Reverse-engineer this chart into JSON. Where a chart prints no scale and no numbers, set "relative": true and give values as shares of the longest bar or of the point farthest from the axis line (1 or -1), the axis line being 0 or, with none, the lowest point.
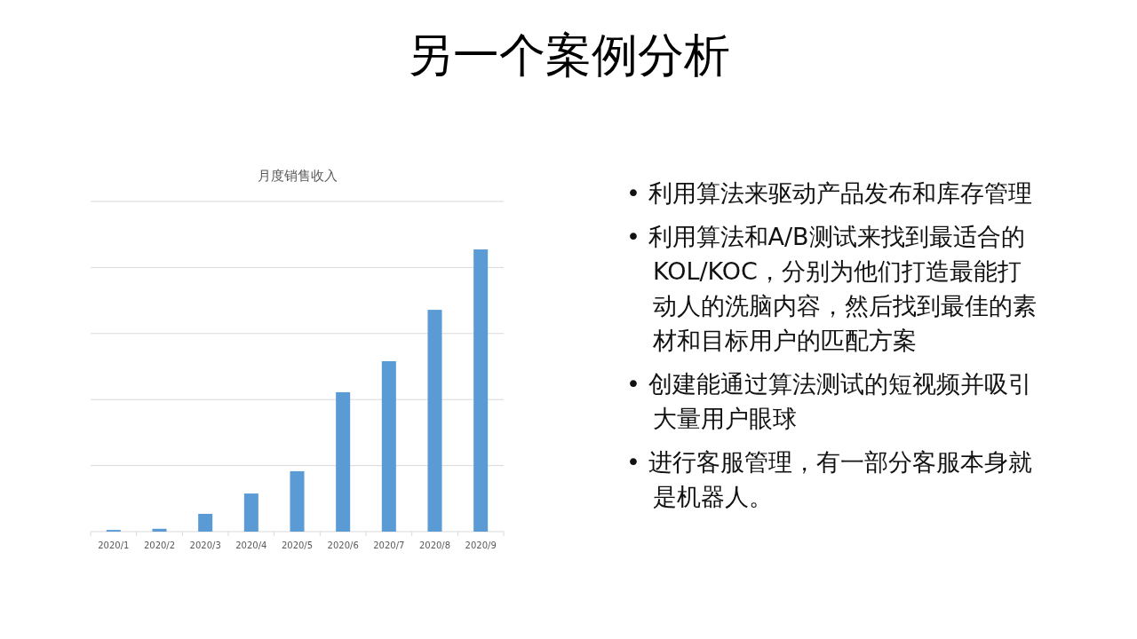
{
  "chart_data": [
    {
      "type": "bar",
      "title": "月度销售收入",
      "relative": true,
      "grid": "y",
      "color": "#5b9bd5",
      "categories": [
        "2020/1",
        "2020/2",
        "2020/3",
        "2020/4",
        "2020/5",
        "2020/6",
        "2020/7",
        "2020/8",
        "2020/9"
      ],
      "values": [
        0.006,
        0.01,
        0.063,
        0.135,
        0.214,
        0.494,
        0.604,
        0.786,
        1
      ]
    },
    {
      "type": "other",
      "title": "另一个案例分析",
      "annotations": [
        "• 利用算法来驱动产品发布和库存管理",
        "• 利用算法和A/B测试来找到最适合的KOL/KOC，分别为他们打造最能打动人的洗脑内容，然后找到最佳的素材和目标用户的匹配方案",
        "• 创建能通过算法测试的短视频并吸引大量用户眼球",
        "• 进行客服管理，有一部分客服本身就是机器人。"
      ]
    }
  ]
}
